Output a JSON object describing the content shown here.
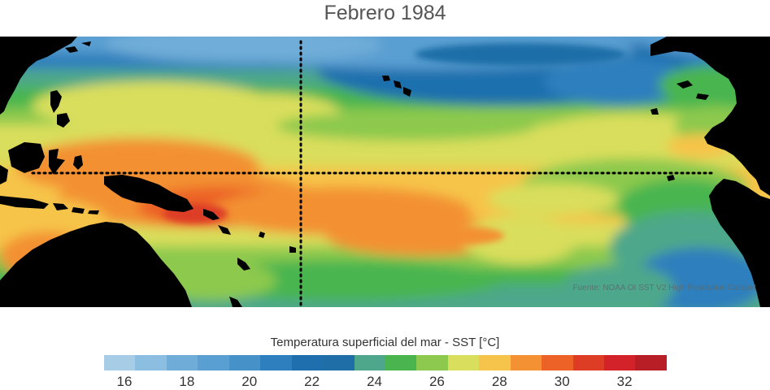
{
  "title": "Febrero 1984",
  "source_note": "Fuente: NOAA OI SST V2 High Resolution Dataset",
  "colorbar": {
    "label": "Temperatura superficial del mar - SST  [°C]",
    "ticks": [
      "16",
      "18",
      "20",
      "22",
      "24",
      "26",
      "28",
      "30",
      "32"
    ],
    "colors": [
      "#a6cce6",
      "#8bbee0",
      "#6fadd8",
      "#5a9fd1",
      "#4591c8",
      "#2e7fbd",
      "#1f6fae",
      "#1f6ea8",
      "#4ea78a",
      "#4ab54f",
      "#8cc94e",
      "#d9de5c",
      "#f6c44a",
      "#f39133",
      "#ec6227",
      "#dd3c25",
      "#d3222a",
      "#b81e25"
    ],
    "land_color": "#000000"
  },
  "map": {
    "reference_lines": [
      "equator-dotted-line",
      "date-line-180-dotted-line"
    ]
  }
}
